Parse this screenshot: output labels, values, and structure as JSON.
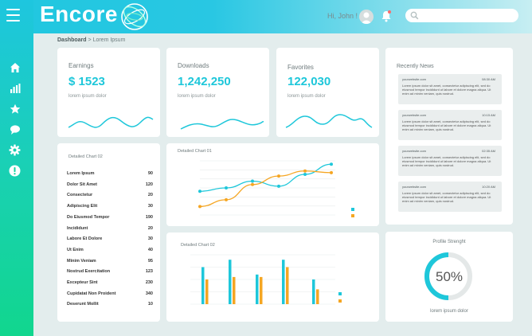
{
  "app": {
    "name": "Encore"
  },
  "header": {
    "greeting": "Hi, John !",
    "search_placeholder": ""
  },
  "breadcrumb": {
    "root": "Dashboard",
    "separator": ">",
    "current": "Lorem Ipsum"
  },
  "sidebar": {
    "items": [
      {
        "name": "home"
      },
      {
        "name": "stats"
      },
      {
        "name": "favorites"
      },
      {
        "name": "messages"
      },
      {
        "name": "settings"
      },
      {
        "name": "alerts"
      }
    ]
  },
  "stats": [
    {
      "label": "Earnings",
      "value": "$ 1523",
      "sub": "lorem ipsum dolor"
    },
    {
      "label": "Downloads",
      "value": "1,242,250",
      "sub": "lorem ipsum dolor"
    },
    {
      "label": "Favorites",
      "value": "122,030",
      "sub": "lorem ipsum dolor"
    }
  ],
  "news": {
    "title": "Recently News",
    "items": [
      {
        "name": "yourwebsite.com",
        "time": "08:30 AM",
        "text": "Lorem ipsum dolor sit amet, consectetur adipiscing elit, sed do eiusmod tempor incididunt ut labore et dolore magna aliqua. Ut enim ad minim veniam, quis nostrud."
      },
      {
        "name": "yourwebsite.com",
        "time": "10:15 AM",
        "text": "Lorem ipsum dolor sit amet, consectetur adipiscing elit, sed do eiusmod tempor incididunt ut labore et dolore magna aliqua. Ut enim ad minim veniam, quis nostrud."
      },
      {
        "name": "yourwebsite.com",
        "time": "02:35 AM",
        "text": "Lorem ipsum dolor sit amet, consectetur adipiscing elit, sed do eiusmod tempor incididunt ut labore et dolore magna aliqua. Ut enim ad minim veniam, quis nostrud."
      },
      {
        "name": "yourwebsite.com",
        "time": "10:20 AM",
        "text": "Lorem ipsum dolor sit amet, consectetur adipiscing elit, sed do eiusmod tempor incididunt ut labore et dolore magna aliqua. Ut enim ad minim veniam, quis nostrud."
      }
    ]
  },
  "detailed_list": {
    "title": "Detailed Chart 02",
    "rows": [
      {
        "label": "Lorem Ipsum",
        "value": "90"
      },
      {
        "label": "Dolor Sit Amet",
        "value": "120"
      },
      {
        "label": "Consectetur",
        "value": "20"
      },
      {
        "label": "Adipiscing Elit",
        "value": "30"
      },
      {
        "label": "Do Eiusmod Tempor",
        "value": "190"
      },
      {
        "label": "Incididunt",
        "value": "20"
      },
      {
        "label": "Labore Et Dolore",
        "value": "30"
      },
      {
        "label": "Ut Enim",
        "value": "40"
      },
      {
        "label": "Minim Veniam",
        "value": "95"
      },
      {
        "label": "Nostrud Exercitation",
        "value": "123"
      },
      {
        "label": "Excepteur Sint",
        "value": "230"
      },
      {
        "label": "Cupidatat Non Proident",
        "value": "340"
      },
      {
        "label": "Deserunt Mollit",
        "value": "10"
      }
    ]
  },
  "profile": {
    "title": "Profile Strenght",
    "percent_label": "50%",
    "percent": 50,
    "sub": "lorem ipsum dolor"
  },
  "colors": {
    "accent": "#1ec7da",
    "orange": "#f5a623",
    "sidebar_top": "#1ec6df",
    "sidebar_bottom": "#11d68e"
  },
  "chart_data": [
    {
      "type": "line",
      "title": "Detailed Chart 01",
      "categories": [
        "",
        "",
        "",
        "",
        "",
        ""
      ],
      "series": [
        {
          "name": "",
          "color": "#1ec7da",
          "values": [
            240,
            260,
            300,
            270,
            340,
            400
          ]
        },
        {
          "name": "",
          "color": "#f5a623",
          "values": [
            150,
            190,
            280,
            330,
            360,
            350
          ]
        }
      ],
      "y_ticks": [
        "",
        "",
        "",
        "",
        "",
        "",
        ""
      ],
      "ylim": [
        100,
        420
      ],
      "grid": true
    },
    {
      "type": "bar",
      "title": "Detailed Chart 02",
      "categories": [
        "",
        "",
        "",
        "",
        ""
      ],
      "series": [
        {
          "name": "",
          "color": "#1ec7da",
          "values": [
            75,
            90,
            60,
            90,
            50
          ]
        },
        {
          "name": "",
          "color": "#f5a623",
          "values": [
            50,
            55,
            55,
            75,
            30
          ]
        }
      ],
      "y_ticks": [
        "",
        "",
        "",
        "",
        ""
      ],
      "ylim": [
        0,
        100
      ],
      "grid": true
    }
  ]
}
